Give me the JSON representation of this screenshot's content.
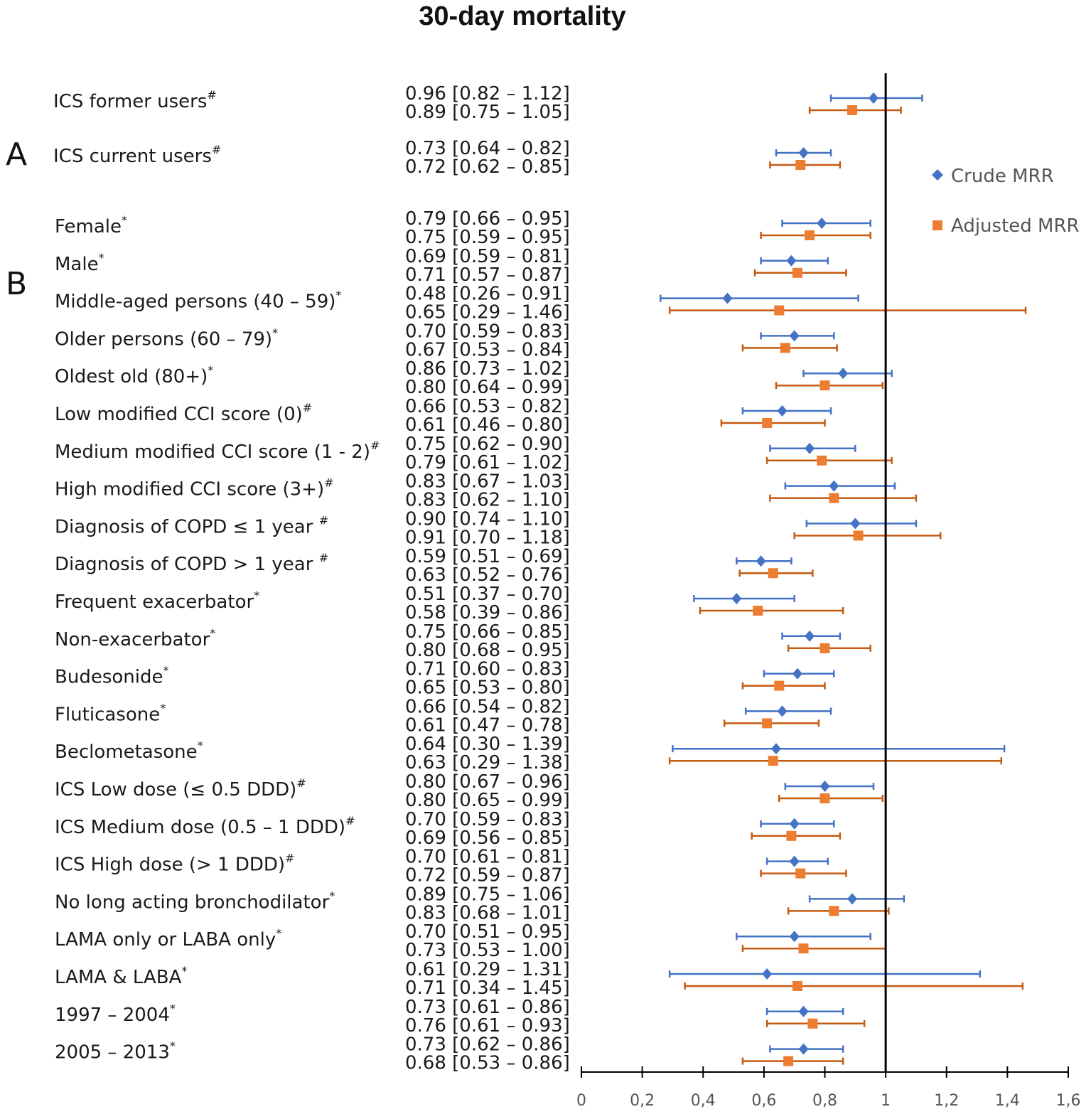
{
  "chart_data": {
    "type": "forest",
    "title": "30-day mortality",
    "section_labels": [
      "A",
      "B"
    ],
    "reference_line": 1,
    "xlim": [
      0,
      1.6
    ],
    "x_ticks": [
      0,
      0.2,
      0.4,
      0.6,
      0.8,
      1,
      1.2,
      1.4,
      1.6
    ],
    "x_tick_labels": [
      "0",
      "0,2",
      "0,4",
      "0,6",
      "0,8",
      "1",
      "1,2",
      "1,4",
      "1,6"
    ],
    "legend": [
      {
        "name": "Crude MRR",
        "marker": "diamond",
        "color": "#4472C4"
      },
      {
        "name": "Adjusted MRR",
        "marker": "square",
        "color": "#ED7D31"
      }
    ],
    "colors": {
      "crude_line": "#4472C4",
      "adjusted_line": "#C55A11",
      "adjusted_marker": "#ED7D31",
      "axis": "#000000"
    },
    "rows": [
      {
        "label": "ICS former users",
        "mark": "#",
        "section": "A",
        "crude": {
          "est": 0.96,
          "lo": 0.82,
          "hi": 1.12,
          "text": "0.96 [0.82 – 1.12]"
        },
        "adjusted": {
          "est": 0.89,
          "lo": 0.75,
          "hi": 1.05,
          "text": "0.89 [0.75 – 1.05]"
        }
      },
      {
        "label": "ICS current users",
        "mark": "#",
        "section": "A",
        "crude": {
          "est": 0.73,
          "lo": 0.64,
          "hi": 0.82,
          "text": "0.73 [0.64 – 0.82]"
        },
        "adjusted": {
          "est": 0.72,
          "lo": 0.62,
          "hi": 0.85,
          "text": "0.72 [0.62 – 0.85]"
        }
      },
      {
        "label": "Female",
        "mark": "*",
        "section": "B",
        "crude": {
          "est": 0.79,
          "lo": 0.66,
          "hi": 0.95,
          "text": "0.79 [0.66 – 0.95]"
        },
        "adjusted": {
          "est": 0.75,
          "lo": 0.59,
          "hi": 0.95,
          "text": "0.75 [0.59 – 0.95]"
        }
      },
      {
        "label": "Male",
        "mark": "*",
        "section": "B",
        "crude": {
          "est": 0.69,
          "lo": 0.59,
          "hi": 0.81,
          "text": "0.69 [0.59 – 0.81]"
        },
        "adjusted": {
          "est": 0.71,
          "lo": 0.57,
          "hi": 0.87,
          "text": "0.71 [0.57 – 0.87]"
        }
      },
      {
        "label": "Middle-aged persons (40 – 59)",
        "mark": "*",
        "section": "B",
        "crude": {
          "est": 0.48,
          "lo": 0.26,
          "hi": 0.91,
          "text": "0.48 [0.26 – 0.91]"
        },
        "adjusted": {
          "est": 0.65,
          "lo": 0.29,
          "hi": 1.46,
          "text": "0.65 [0.29 – 1.46]"
        }
      },
      {
        "label": "Older persons (60 – 79)",
        "mark": "*",
        "section": "B",
        "crude": {
          "est": 0.7,
          "lo": 0.59,
          "hi": 0.83,
          "text": "0.70 [0.59 – 0.83]"
        },
        "adjusted": {
          "est": 0.67,
          "lo": 0.53,
          "hi": 0.84,
          "text": "0.67 [0.53 – 0.84]"
        }
      },
      {
        "label": "Oldest old (80+)",
        "mark": "*",
        "section": "B",
        "crude": {
          "est": 0.86,
          "lo": 0.73,
          "hi": 1.02,
          "text": "0.86 [0.73 – 1.02]"
        },
        "adjusted": {
          "est": 0.8,
          "lo": 0.64,
          "hi": 0.99,
          "text": "0.80 [0.64 – 0.99]"
        }
      },
      {
        "label": "Low modified CCI score (0)",
        "mark": "#",
        "section": "B",
        "crude": {
          "est": 0.66,
          "lo": 0.53,
          "hi": 0.82,
          "text": "0.66 [0.53 – 0.82]"
        },
        "adjusted": {
          "est": 0.61,
          "lo": 0.46,
          "hi": 0.8,
          "text": "0.61 [0.46 – 0.80]"
        }
      },
      {
        "label": "Medium modified CCI score (1 - 2)",
        "mark": "#",
        "section": "B",
        "crude": {
          "est": 0.75,
          "lo": 0.62,
          "hi": 0.9,
          "text": "0.75 [0.62 – 0.90]"
        },
        "adjusted": {
          "est": 0.79,
          "lo": 0.61,
          "hi": 1.02,
          "text": "0.79 [0.61 – 1.02]"
        }
      },
      {
        "label": "High modified CCI score (3+)",
        "mark": "#",
        "section": "B",
        "crude": {
          "est": 0.83,
          "lo": 0.67,
          "hi": 1.03,
          "text": "0.83 [0.67 – 1.03]"
        },
        "adjusted": {
          "est": 0.83,
          "lo": 0.62,
          "hi": 1.1,
          "text": "0.83 [0.62 – 1.10]"
        }
      },
      {
        "label": "Diagnosis of  COPD ≤ 1 year ",
        "mark": "#",
        "section": "B",
        "crude": {
          "est": 0.9,
          "lo": 0.74,
          "hi": 1.1,
          "text": "0.90 [0.74 – 1.10]"
        },
        "adjusted": {
          "est": 0.91,
          "lo": 0.7,
          "hi": 1.18,
          "text": "0.91 [0.70 – 1.18]"
        }
      },
      {
        "label": "Diagnosis of  COPD > 1 year ",
        "mark": "#",
        "section": "B",
        "crude": {
          "est": 0.59,
          "lo": 0.51,
          "hi": 0.69,
          "text": "0.59 [0.51 – 0.69]"
        },
        "adjusted": {
          "est": 0.63,
          "lo": 0.52,
          "hi": 0.76,
          "text": "0.63 [0.52 – 0.76]"
        }
      },
      {
        "label": "Frequent exacerbator",
        "mark": "*",
        "section": "B",
        "crude": {
          "est": 0.51,
          "lo": 0.37,
          "hi": 0.7,
          "text": "0.51 [0.37 – 0.70]"
        },
        "adjusted": {
          "est": 0.58,
          "lo": 0.39,
          "hi": 0.86,
          "text": "0.58 [0.39 – 0.86]"
        }
      },
      {
        "label": "Non-exacerbator",
        "mark": "*",
        "section": "B",
        "crude": {
          "est": 0.75,
          "lo": 0.66,
          "hi": 0.85,
          "text": "0.75 [0.66 – 0.85]"
        },
        "adjusted": {
          "est": 0.8,
          "lo": 0.68,
          "hi": 0.95,
          "text": "0.80 [0.68 – 0.95]"
        }
      },
      {
        "label": "Budesonide",
        "mark": "*",
        "section": "B",
        "crude": {
          "est": 0.71,
          "lo": 0.6,
          "hi": 0.83,
          "text": "0.71 [0.60 – 0.83]"
        },
        "adjusted": {
          "est": 0.65,
          "lo": 0.53,
          "hi": 0.8,
          "text": "0.65 [0.53 – 0.80]"
        }
      },
      {
        "label": "Fluticasone",
        "mark": "*",
        "section": "B",
        "crude": {
          "est": 0.66,
          "lo": 0.54,
          "hi": 0.82,
          "text": "0.66 [0.54 – 0.82]"
        },
        "adjusted": {
          "est": 0.61,
          "lo": 0.47,
          "hi": 0.78,
          "text": "0.61 [0.47 – 0.78]"
        }
      },
      {
        "label": "Beclometasone",
        "mark": "*",
        "section": "B",
        "crude": {
          "est": 0.64,
          "lo": 0.3,
          "hi": 1.39,
          "text": "0.64 [0.30 – 1.39]"
        },
        "adjusted": {
          "est": 0.63,
          "lo": 0.29,
          "hi": 1.38,
          "text": "0.63 [0.29 – 1.38]"
        }
      },
      {
        "label": "ICS Low dose (≤ 0.5 DDD)",
        "mark": "#",
        "section": "B",
        "crude": {
          "est": 0.8,
          "lo": 0.67,
          "hi": 0.96,
          "text": "0.80 [0.67 – 0.96]"
        },
        "adjusted": {
          "est": 0.8,
          "lo": 0.65,
          "hi": 0.99,
          "text": "0.80 [0.65 – 0.99]"
        }
      },
      {
        "label": "ICS Medium dose (0.5 – 1 DDD)",
        "mark": "#",
        "section": "B",
        "crude": {
          "est": 0.7,
          "lo": 0.59,
          "hi": 0.83,
          "text": "0.70 [0.59 – 0.83]"
        },
        "adjusted": {
          "est": 0.69,
          "lo": 0.56,
          "hi": 0.85,
          "text": "0.69 [0.56 – 0.85]"
        }
      },
      {
        "label": "ICS High dose (> 1 DDD)",
        "mark": "#",
        "section": "B",
        "crude": {
          "est": 0.7,
          "lo": 0.61,
          "hi": 0.81,
          "text": "0.70 [0.61 – 0.81]"
        },
        "adjusted": {
          "est": 0.72,
          "lo": 0.59,
          "hi": 0.87,
          "text": "0.72 [0.59 – 0.87]"
        }
      },
      {
        "label": "No long acting bronchodilator",
        "mark": "*",
        "section": "B",
        "crude": {
          "est": 0.89,
          "lo": 0.75,
          "hi": 1.06,
          "text": "0.89 [0.75 – 1.06]"
        },
        "adjusted": {
          "est": 0.83,
          "lo": 0.68,
          "hi": 1.01,
          "text": "0.83 [0.68 – 1.01]"
        }
      },
      {
        "label": "LAMA only or LABA only",
        "mark": "*",
        "section": "B",
        "crude": {
          "est": 0.7,
          "lo": 0.51,
          "hi": 0.95,
          "text": "0.70 [0.51 – 0.95]"
        },
        "adjusted": {
          "est": 0.73,
          "lo": 0.53,
          "hi": 1.0,
          "text": "0.73 [0.53 – 1.00]"
        }
      },
      {
        "label": "LAMA & LABA",
        "mark": "*",
        "section": "B",
        "crude": {
          "est": 0.61,
          "lo": 0.29,
          "hi": 1.31,
          "text": "0.61 [0.29 – 1.31]"
        },
        "adjusted": {
          "est": 0.71,
          "lo": 0.34,
          "hi": 1.45,
          "text": "0.71 [0.34 – 1.45]"
        }
      },
      {
        "label": "1997 – 2004",
        "mark": "*",
        "section": "B",
        "crude": {
          "est": 0.73,
          "lo": 0.61,
          "hi": 0.86,
          "text": "0.73 [0.61 – 0.86]"
        },
        "adjusted": {
          "est": 0.76,
          "lo": 0.61,
          "hi": 0.93,
          "text": "0.76 [0.61 – 0.93]"
        }
      },
      {
        "label": "2005 – 2013",
        "mark": "*",
        "section": "B",
        "crude": {
          "est": 0.73,
          "lo": 0.62,
          "hi": 0.86,
          "text": "0.73 [0.62 – 0.86]"
        },
        "adjusted": {
          "est": 0.68,
          "lo": 0.53,
          "hi": 0.86,
          "text": "0.68 [0.53 – 0.86]"
        }
      }
    ]
  }
}
